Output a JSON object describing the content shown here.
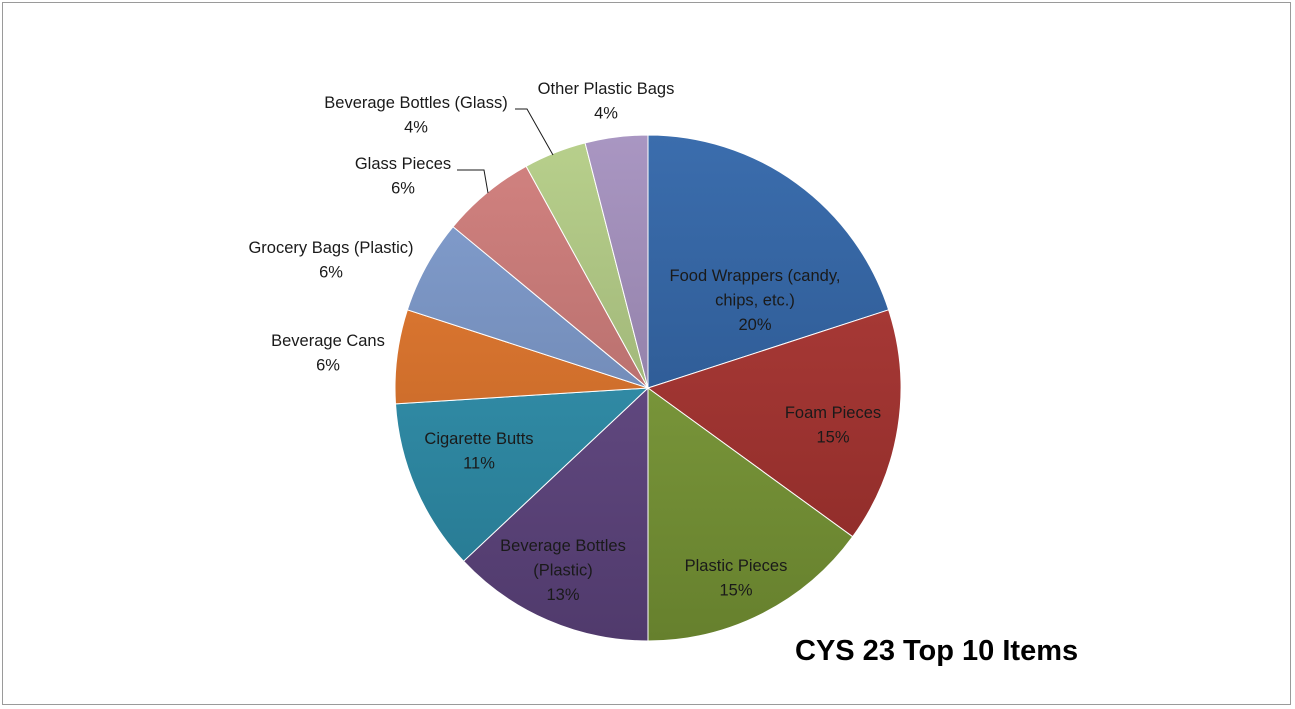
{
  "chart_data": {
    "type": "pie",
    "title": "CYS 23 Top 10 Items",
    "start_angle_deg": 0,
    "direction": "clockwise",
    "slices": [
      {
        "label": "Food Wrappers (candy, chips, etc.)",
        "label_lines": [
          "Food Wrappers (candy,",
          "chips, etc.)"
        ],
        "value": 20,
        "value_label": "20%",
        "color": "#2f64a8",
        "label_position": "inside"
      },
      {
        "label": "Foam Pieces",
        "label_lines": [
          "Foam Pieces"
        ],
        "value": 15,
        "value_label": "15%",
        "color": "#b03431",
        "label_position": "inside"
      },
      {
        "label": "Plastic Pieces",
        "label_lines": [
          "Plastic Pieces"
        ],
        "value": 15,
        "value_label": "15%",
        "color": "#83a43a",
        "label_position": "inside"
      },
      {
        "label": "Beverage Bottles (Plastic)",
        "label_lines": [
          "Beverage Bottles",
          "(Plastic)"
        ],
        "value": 13,
        "value_label": "13%",
        "color": "#674a8a",
        "label_position": "inside"
      },
      {
        "label": "Cigarette Butts",
        "label_lines": [
          "Cigarette Butts"
        ],
        "value": 11,
        "value_label": "11%",
        "color": "#2f97b6",
        "label_position": "inside"
      },
      {
        "label": "Beverage Cans",
        "label_lines": [
          "Beverage Cans"
        ],
        "value": 6,
        "value_label": "6%",
        "color": "#e9782a",
        "label_position": "outside-left"
      },
      {
        "label": "Grocery Bags (Plastic)",
        "label_lines": [
          "Grocery Bags (Plastic)"
        ],
        "value": 6,
        "value_label": "6%",
        "color": "#7d9bcf",
        "label_position": "outside-left"
      },
      {
        "label": "Glass Pieces",
        "label_lines": [
          "Glass Pieces"
        ],
        "value": 6,
        "value_label": "6%",
        "color": "#d07b79",
        "label_position": "outside-leader"
      },
      {
        "label": "Beverage Bottles (Glass)",
        "label_lines": [
          "Beverage Bottles (Glass)"
        ],
        "value": 4,
        "value_label": "4%",
        "color": "#b3cd85",
        "label_position": "outside-leader"
      },
      {
        "label": "Other Plastic Bags",
        "label_lines": [
          "Other Plastic Bags"
        ],
        "value": 4,
        "value_label": "4%",
        "color": "#a48fbe",
        "label_position": "outside-top"
      }
    ]
  }
}
